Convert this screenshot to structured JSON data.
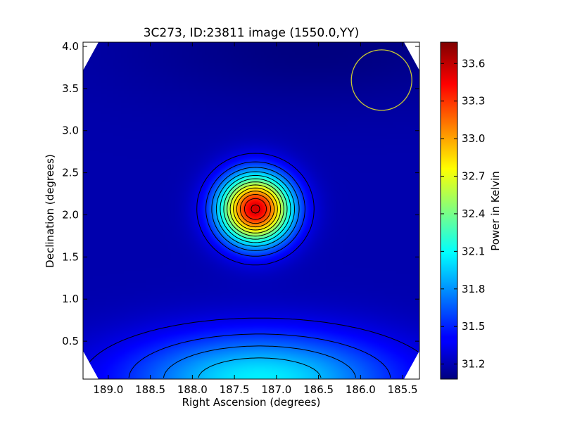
{
  "chart_data": {
    "type": "heatmap",
    "title": "3C273, ID:23811 image (1550.0,YY)",
    "xlabel": "Right Ascension (degrees)",
    "ylabel": "Declination (degrees)",
    "colorbar_label": "Power in Kelvin",
    "xlim": [
      189.3,
      185.3
    ],
    "ylim": [
      0.05,
      4.05
    ],
    "x_ticks": [
      189.0,
      188.5,
      188.0,
      187.5,
      187.0,
      186.5,
      186.0,
      185.5
    ],
    "x_tick_labels": [
      "189.0",
      "188.5",
      "188.0",
      "187.5",
      "187.0",
      "186.5",
      "186.0",
      "185.5"
    ],
    "y_ticks": [
      0.5,
      1.0,
      1.5,
      2.0,
      2.5,
      3.0,
      3.5,
      4.0
    ],
    "y_tick_labels": [
      "0.5",
      "1.0",
      "1.5",
      "2.0",
      "2.5",
      "3.0",
      "3.5",
      "4.0"
    ],
    "colorbar_range": [
      31.08,
      33.77
    ],
    "colorbar_ticks": [
      31.2,
      31.5,
      31.8,
      32.1,
      32.4,
      32.7,
      33.0,
      33.3,
      33.6
    ],
    "colorbar_tick_labels": [
      "31.2",
      "31.5",
      "31.8",
      "32.1",
      "32.4",
      "32.7",
      "33.0",
      "33.3",
      "33.6"
    ],
    "colormap": "jet",
    "peak": {
      "ra": 187.25,
      "dec": 2.07,
      "value": 33.75
    },
    "contours": true,
    "beam_circle": {
      "ra": 185.75,
      "dec": 3.6,
      "radius_deg": 0.36,
      "color": "#c8c832"
    },
    "colors": {
      "background_corner": "#ffffff",
      "contour": "#000000"
    }
  }
}
